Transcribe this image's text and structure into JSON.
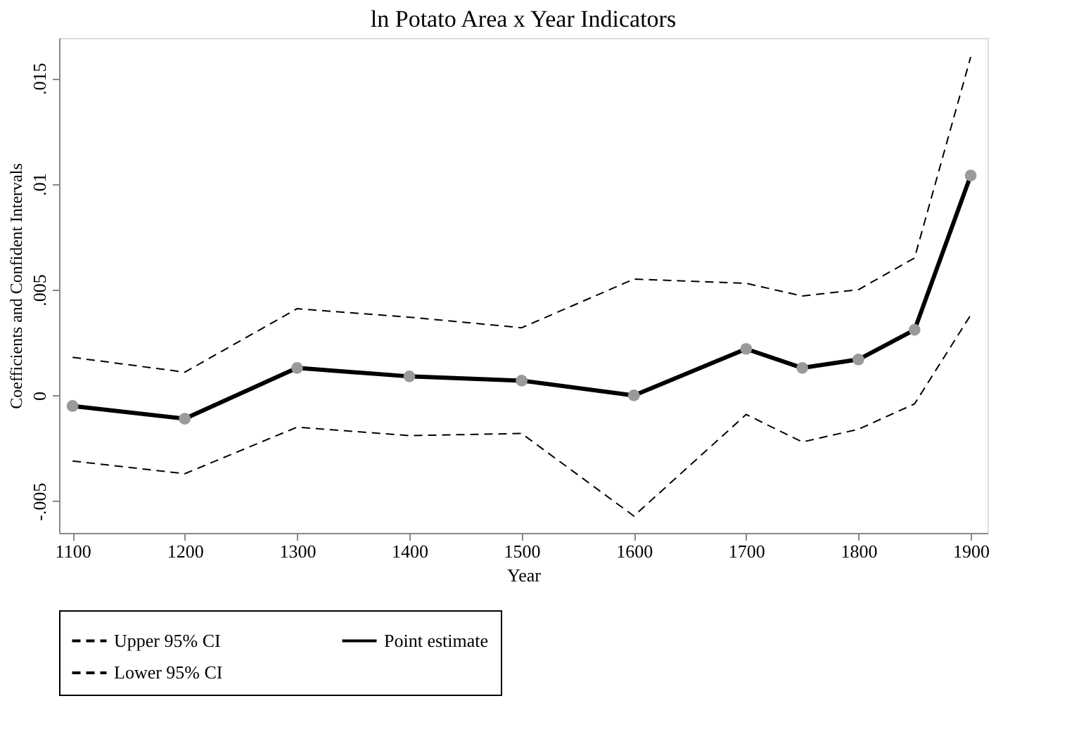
{
  "chart_data": {
    "type": "line",
    "title": "ln Potato Area x Year Indicators",
    "xlabel": "Year",
    "ylabel": "Coefficients and Confident Intervals",
    "x": [
      1100,
      1200,
      1300,
      1400,
      1500,
      1600,
      1700,
      1750,
      1800,
      1850,
      1900
    ],
    "series": [
      {
        "name": "Upper 95% CI",
        "color": "#000000",
        "line_style": "dashed",
        "marker": "none",
        "values": [
          0.0018,
          0.0011,
          0.0041,
          0.0037,
          0.0032,
          0.0055,
          0.0053,
          0.0047,
          0.005,
          0.0065,
          0.016
        ]
      },
      {
        "name": "Lower 95% CI",
        "color": "#000000",
        "line_style": "dashed",
        "marker": "none",
        "values": [
          -0.0031,
          -0.0037,
          -0.0015,
          -0.0019,
          -0.0018,
          -0.0057,
          -0.0009,
          -0.0022,
          -0.0016,
          -0.0004,
          0.0038
        ]
      },
      {
        "name": "Point estimate",
        "color": "#000000",
        "line_style": "solid",
        "marker": "circle",
        "values": [
          -0.0005,
          -0.0011,
          0.0013,
          0.0009,
          0.0007,
          0.0,
          0.0022,
          0.0013,
          0.0017,
          0.0031,
          0.0104
        ]
      }
    ],
    "xlim": [
      1088,
      1915
    ],
    "xticks": [
      1100,
      1200,
      1300,
      1400,
      1500,
      1600,
      1700,
      1800,
      1900
    ],
    "ylim": [
      -0.0065,
      0.0169
    ],
    "yticks": [
      {
        "value": -0.005,
        "label": "-.005"
      },
      {
        "value": 0,
        "label": "0"
      },
      {
        "value": 0.005,
        "label": ".005"
      },
      {
        "value": 0.01,
        "label": ".01"
      },
      {
        "value": 0.015,
        "label": ".015"
      }
    ],
    "grid": false,
    "legend": "bottom"
  }
}
